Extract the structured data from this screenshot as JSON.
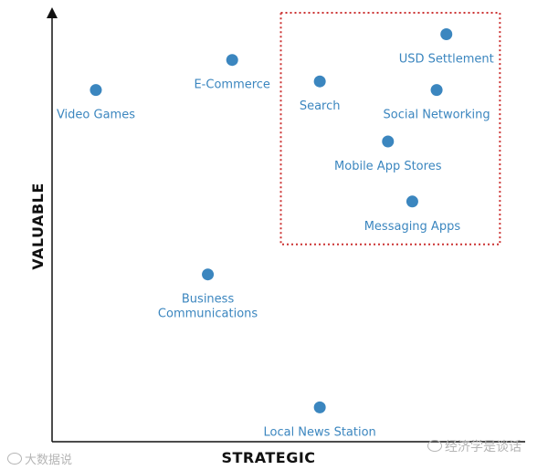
{
  "chart_data": {
    "type": "scatter",
    "xlabel": "STRATEGIC",
    "ylabel": "VALUABLE",
    "grid": false,
    "points": [
      {
        "label": [
          "Video Games"
        ],
        "x": 0.09,
        "y": 0.82
      },
      {
        "label": [
          "E-Commerce"
        ],
        "x": 0.37,
        "y": 0.89
      },
      {
        "label": [
          "Search"
        ],
        "x": 0.55,
        "y": 0.84
      },
      {
        "label": [
          "USD Settlement"
        ],
        "x": 0.81,
        "y": 0.95
      },
      {
        "label": [
          "Social Networking"
        ],
        "x": 0.79,
        "y": 0.82
      },
      {
        "label": [
          "Mobile App Stores"
        ],
        "x": 0.69,
        "y": 0.7
      },
      {
        "label": [
          "Messaging Apps"
        ],
        "x": 0.74,
        "y": 0.56
      },
      {
        "label": [
          "Business",
          "Communications"
        ],
        "x": 0.32,
        "y": 0.39
      },
      {
        "label": [
          "Local News Station"
        ],
        "x": 0.55,
        "y": 0.08
      }
    ],
    "highlight": {
      "x": [
        0.47,
        0.92
      ],
      "y": [
        0.46,
        1.0
      ]
    },
    "colors": {
      "point": "#3b86bf",
      "label": "#3b86bf",
      "highlight": "#cc3333",
      "axis": "#111111"
    }
  },
  "watermarks": {
    "left": "大数据说",
    "right": "经济学是谈话"
  }
}
